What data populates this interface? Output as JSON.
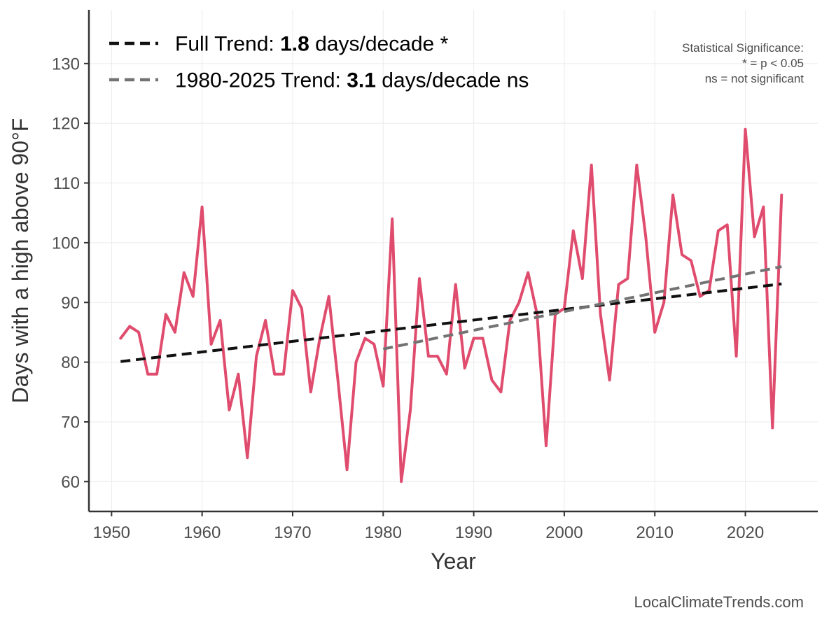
{
  "chart_data": {
    "type": "line",
    "xlabel": "Year",
    "ylabel": "Days with a high above 90°F",
    "xlim": [
      1947.5,
      2028
    ],
    "ylim": [
      55,
      139
    ],
    "xticks": [
      1950,
      1960,
      1970,
      1980,
      1990,
      2000,
      2010,
      2020
    ],
    "yticks": [
      60,
      70,
      80,
      90,
      100,
      110,
      120,
      130
    ],
    "grid": true,
    "legend_position": "top-left",
    "series": [
      {
        "color": "#e04c6e",
        "x": [
          1951,
          1952,
          1953,
          1954,
          1955,
          1956,
          1957,
          1958,
          1959,
          1960,
          1961,
          1962,
          1963,
          1964,
          1965,
          1966,
          1967,
          1968,
          1969,
          1970,
          1971,
          1972,
          1973,
          1974,
          1975,
          1976,
          1977,
          1978,
          1979,
          1980,
          1981,
          1982,
          1983,
          1984,
          1985,
          1986,
          1987,
          1988,
          1989,
          1990,
          1991,
          1992,
          1993,
          1994,
          1995,
          1996,
          1997,
          1998,
          1999,
          2000,
          2001,
          2002,
          2003,
          2004,
          2005,
          2006,
          2007,
          2008,
          2009,
          2010,
          2011,
          2012,
          2013,
          2014,
          2015,
          2016,
          2017,
          2018,
          2019,
          2020,
          2021,
          2022,
          2023,
          2024
        ],
        "y": [
          84,
          86,
          85,
          78,
          78,
          88,
          85,
          95,
          91,
          106,
          83,
          87,
          72,
          78,
          64,
          81,
          87,
          78,
          78,
          92,
          89,
          75,
          84,
          91,
          77,
          62,
          80,
          84,
          83,
          76,
          104,
          60,
          72,
          94,
          81,
          81,
          78,
          93,
          79,
          84,
          84,
          77,
          75,
          87,
          90,
          95,
          88,
          66,
          88,
          89,
          102,
          94,
          113,
          88,
          77,
          93,
          94,
          113,
          101,
          85,
          90,
          108,
          98,
          97,
          91,
          92,
          102,
          103,
          81,
          119,
          101,
          106,
          69,
          108
        ]
      }
    ],
    "trends": [
      {
        "label_prefix": "Full Trend: ",
        "label_value": "1.8",
        "label_suffix": " days/decade *",
        "color": "#111111",
        "x": [
          1951,
          2024
        ],
        "y": [
          80.1,
          93.1
        ]
      },
      {
        "label_prefix": "1980-2025 Trend: ",
        "label_value": "3.1",
        "label_suffix": " days/decade ns",
        "color": "#737373",
        "x": [
          1980,
          2024
        ],
        "y": [
          82.2,
          96.0
        ]
      }
    ],
    "significance_note": [
      "Statistical Significance:",
      "* = p < 0.05",
      "ns = not significant"
    ],
    "credit": "LocalClimateTrends.com"
  }
}
